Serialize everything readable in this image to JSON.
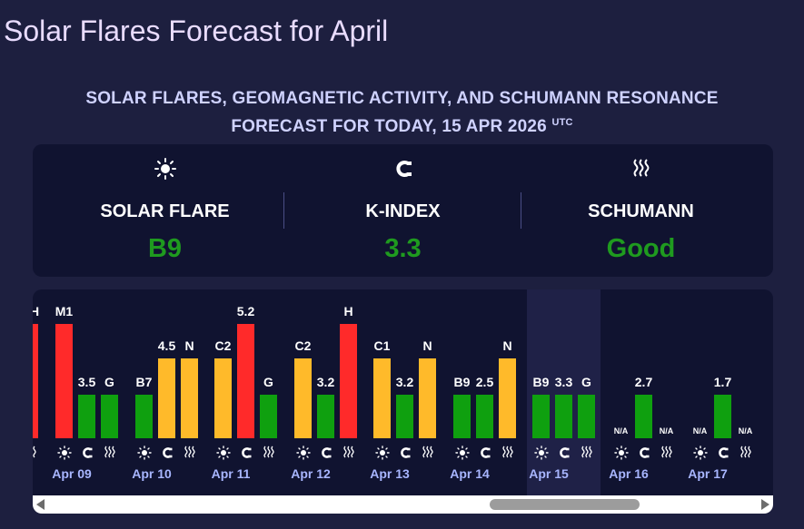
{
  "page_title": "Solar Flares Forecast for April",
  "subtitle": {
    "line1": "SOLAR FLARES, GEOMAGNETIC ACTIVITY, AND SCHUMANN RESONANCE",
    "line2": "FORECAST FOR TODAY, 15 APR 2026",
    "sup": "UTC"
  },
  "summary": {
    "solar_flare": {
      "label": "SOLAR FLARE",
      "value": "B9",
      "icon": "sun-icon"
    },
    "k_index": {
      "label": "K-INDEX",
      "value": "3.3",
      "icon": "magnet-icon"
    },
    "schumann": {
      "label": "SCHUMANN",
      "value": "Good",
      "icon": "waves-icon"
    }
  },
  "colors": {
    "red": "#ff2a2a",
    "yellow": "#ffba2a",
    "green": "#0fa00f",
    "value_green": "#1f9b1f",
    "date_blue": "#a8b6ff"
  },
  "chart_data": {
    "type": "bar",
    "categories": [
      "Apr 09",
      "Apr 10",
      "Apr 11",
      "Apr 12",
      "Apr 13",
      "Apr 14",
      "Apr 15",
      "Apr 16",
      "Apr 17"
    ],
    "series": [
      {
        "name": "solar-flare",
        "labels": [
          "M1",
          "B7",
          "C2",
          "C2",
          "C1",
          "B9",
          "B9",
          "N/A",
          "N/A"
        ],
        "levels": [
          1.0,
          0.38,
          0.7,
          0.7,
          0.7,
          0.38,
          0.38,
          0,
          0
        ],
        "colors": [
          "red",
          "green",
          "yellow",
          "yellow",
          "yellow",
          "green",
          "green",
          null,
          null
        ]
      },
      {
        "name": "k-index",
        "labels": [
          "3.5",
          "4.5",
          "5.2",
          "3.2",
          "3.2",
          "2.5",
          "3.3",
          "2.7",
          "1.7"
        ],
        "levels": [
          0.38,
          0.7,
          1.0,
          0.38,
          0.38,
          0.38,
          0.38,
          0.38,
          0.38
        ],
        "colors": [
          "green",
          "yellow",
          "red",
          "green",
          "green",
          "green",
          "green",
          "green",
          "green"
        ]
      },
      {
        "name": "schumann",
        "labels": [
          "G",
          "N",
          "G",
          "H",
          "N",
          "N",
          "G",
          "N/A",
          "N/A"
        ],
        "levels": [
          0.38,
          0.7,
          0.38,
          1.0,
          0.7,
          0.7,
          0.38,
          0,
          0
        ],
        "colors": [
          "green",
          "yellow",
          "green",
          "red",
          "yellow",
          "yellow",
          "green",
          null,
          null
        ]
      }
    ],
    "partial_previous": {
      "label": "H",
      "color": "red",
      "level": 1.0
    },
    "highlighted_category": "Apr 15"
  },
  "scrollbar": {
    "position": 0.79,
    "visible_fraction": 0.32
  }
}
